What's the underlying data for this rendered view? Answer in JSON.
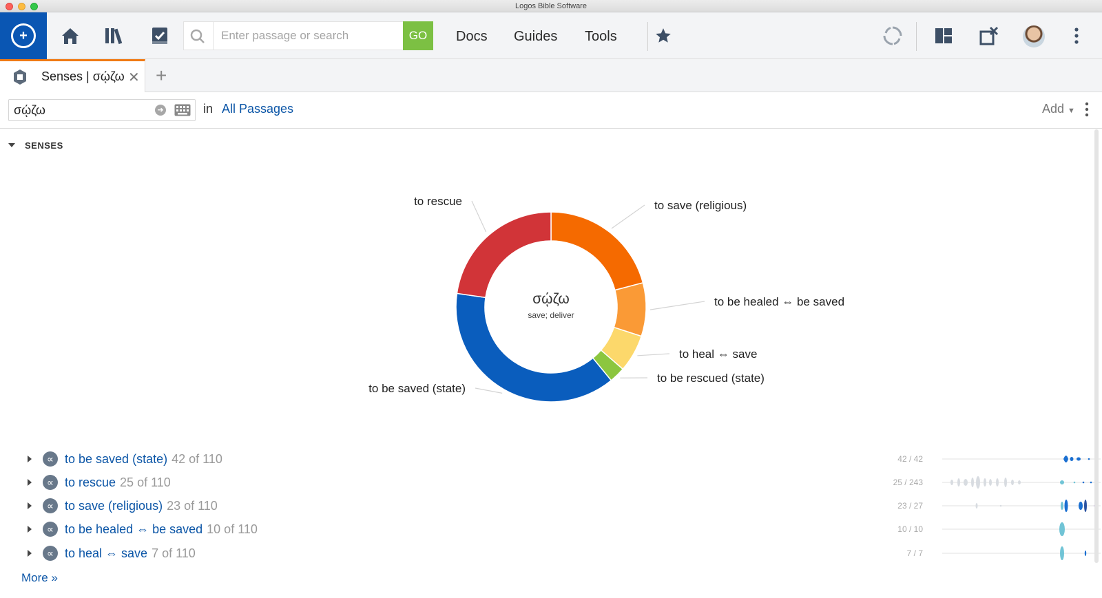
{
  "window": {
    "title": "Logos Bible Software"
  },
  "toolbar": {
    "search_placeholder": "Enter passage or search",
    "go_label": "GO",
    "links": [
      "Docs",
      "Guides",
      "Tools"
    ]
  },
  "tab": {
    "title": "Senses | σῴζω"
  },
  "searchbar": {
    "lemma": "σῴζω",
    "in_label": "in",
    "scope": "All Passages",
    "add_label": "Add"
  },
  "section": {
    "heading": "SENSES"
  },
  "chart_data": {
    "type": "pie",
    "center_title": "σῴζω",
    "center_subtitle": "save; deliver",
    "total": 110,
    "slices": [
      {
        "label": "to save (religious)",
        "value": 23,
        "color": "#f56a00"
      },
      {
        "label": "to be healed ⇔ be saved",
        "value": 10,
        "color": "#fa9a36"
      },
      {
        "label": "to heal ⇔ save",
        "value": 7,
        "color": "#fcd86b"
      },
      {
        "label": "to be rescued (state)",
        "value": 3,
        "color": "#8cc63f"
      },
      {
        "label": "to be saved (state)",
        "value": 42,
        "color": "#0a5dbd"
      },
      {
        "label": "to rescue",
        "value": 25,
        "color": "#d13438"
      }
    ]
  },
  "senses": [
    {
      "label": "to be saved (state)",
      "count": "42 of 110",
      "ratio": "42 / 42"
    },
    {
      "label": "to rescue",
      "count": "25 of 110",
      "ratio": "25 / 243"
    },
    {
      "label": "to save (religious)",
      "count": "23 of 110",
      "ratio": "23 / 27"
    },
    {
      "label": "to be healed ⇔ be saved",
      "count": "10 of 110",
      "ratio": "10 / 10"
    },
    {
      "label": "to heal ⇔ save",
      "count": "7 of 110",
      "ratio": "7 / 7"
    }
  ],
  "more_label": "More »"
}
